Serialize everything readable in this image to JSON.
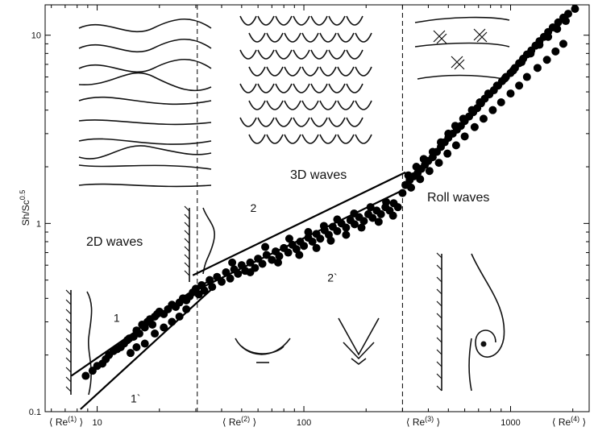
{
  "chart_data": {
    "type": "scatter",
    "x_scale": "log",
    "y_scale": "log",
    "xlim": [
      5.6,
      2400
    ],
    "ylim": [
      0.1,
      14.5
    ],
    "x_tick_labels": [
      {
        "value": 10,
        "label": "10"
      },
      {
        "value": 100,
        "label": "100"
      },
      {
        "value": 1000,
        "label": "1000"
      }
    ],
    "y_tick_labels": [
      {
        "value": 0.1,
        "label": "0.1"
      },
      {
        "value": 1,
        "label": "1"
      },
      {
        "value": 10,
        "label": "10"
      }
    ],
    "ylabel": {
      "base": "Sh/Sc",
      "exponent": "0.5"
    },
    "regime_boundaries": [
      {
        "label": "Re",
        "index": "(2)",
        "x": 30.5
      },
      {
        "label": "Re",
        "index": "(3)",
        "x": 300
      }
    ],
    "re_markers": [
      {
        "label": "Re",
        "index": "(1)"
      },
      {
        "label": "Re",
        "index": "(2)"
      },
      {
        "label": "Re",
        "index": "(3)"
      },
      {
        "label": "Re",
        "index": "(4)"
      }
    ],
    "region_labels": [
      "2D waves",
      "3D waves",
      "Roll waves"
    ],
    "fit_lines": [
      {
        "label": "1",
        "points": [
          [
            7.5,
            0.155
          ],
          [
            36,
            0.51
          ]
        ]
      },
      {
        "label": "1`",
        "points": [
          [
            8.3,
            0.103
          ],
          [
            36,
            0.45
          ]
        ]
      },
      {
        "label": "2",
        "points": [
          [
            29,
            0.53
          ],
          [
            310,
            1.87
          ]
        ]
      },
      {
        "label": "2`",
        "points": [
          [
            25,
            0.4
          ],
          [
            300,
            1.5
          ]
        ]
      }
    ],
    "series": [
      {
        "marker": "filled-circle",
        "points": [
          [
            8.8,
            0.155
          ],
          [
            9.5,
            0.165
          ],
          [
            10,
            0.175
          ],
          [
            10.6,
            0.18
          ],
          [
            11,
            0.19
          ],
          [
            11.4,
            0.2
          ],
          [
            12,
            0.21
          ],
          [
            12.5,
            0.215
          ],
          [
            13,
            0.22
          ],
          [
            13.5,
            0.23
          ],
          [
            14,
            0.24
          ],
          [
            14.3,
            0.245
          ],
          [
            15,
            0.25
          ],
          [
            15.5,
            0.27
          ],
          [
            16,
            0.26
          ],
          [
            16.5,
            0.29
          ],
          [
            17,
            0.28
          ],
          [
            17.5,
            0.3
          ],
          [
            18,
            0.31
          ],
          [
            18.5,
            0.29
          ],
          [
            19,
            0.32
          ],
          [
            19.5,
            0.33
          ],
          [
            20,
            0.34
          ],
          [
            21,
            0.33
          ],
          [
            22,
            0.35
          ],
          [
            23,
            0.37
          ],
          [
            24,
            0.36
          ],
          [
            25,
            0.38
          ],
          [
            26,
            0.4
          ],
          [
            27,
            0.39
          ],
          [
            28,
            0.41
          ],
          [
            29,
            0.43
          ],
          [
            14.5,
            0.205
          ],
          [
            15.5,
            0.22
          ],
          [
            17,
            0.23
          ],
          [
            19,
            0.26
          ],
          [
            21,
            0.28
          ],
          [
            23,
            0.3
          ],
          [
            25,
            0.32
          ],
          [
            27,
            0.35
          ],
          [
            30,
            0.45
          ],
          [
            31,
            0.42
          ],
          [
            32,
            0.47
          ],
          [
            33,
            0.44
          ],
          [
            35,
            0.5
          ],
          [
            36,
            0.46
          ],
          [
            38,
            0.52
          ],
          [
            40,
            0.49
          ],
          [
            42,
            0.55
          ],
          [
            44,
            0.51
          ],
          [
            46,
            0.57
          ],
          [
            48,
            0.54
          ],
          [
            50,
            0.6
          ],
          [
            52,
            0.56
          ],
          [
            55,
            0.62
          ],
          [
            58,
            0.58
          ],
          [
            60,
            0.65
          ],
          [
            63,
            0.61
          ],
          [
            66,
            0.68
          ],
          [
            70,
            0.64
          ],
          [
            73,
            0.71
          ],
          [
            76,
            0.67
          ],
          [
            80,
            0.74
          ],
          [
            84,
            0.7
          ],
          [
            88,
            0.77
          ],
          [
            92,
            0.73
          ],
          [
            96,
            0.8
          ],
          [
            100,
            0.76
          ],
          [
            105,
            0.84
          ],
          [
            110,
            0.8
          ],
          [
            115,
            0.88
          ],
          [
            120,
            0.83
          ],
          [
            126,
            0.92
          ],
          [
            132,
            0.87
          ],
          [
            138,
            0.96
          ],
          [
            145,
            0.91
          ],
          [
            152,
            1.0
          ],
          [
            160,
            0.95
          ],
          [
            168,
            1.04
          ],
          [
            176,
            0.99
          ],
          [
            185,
            1.08
          ],
          [
            195,
            1.03
          ],
          [
            205,
            1.12
          ],
          [
            215,
            1.07
          ],
          [
            225,
            1.17
          ],
          [
            236,
            1.12
          ],
          [
            248,
            1.22
          ],
          [
            260,
            1.17
          ],
          [
            272,
            1.28
          ],
          [
            285,
            1.22
          ],
          [
            45,
            0.62
          ],
          [
            55,
            0.55
          ],
          [
            65,
            0.75
          ],
          [
            75,
            0.62
          ],
          [
            85,
            0.83
          ],
          [
            95,
            0.68
          ],
          [
            105,
            0.9
          ],
          [
            115,
            0.74
          ],
          [
            125,
            0.97
          ],
          [
            135,
            0.81
          ],
          [
            145,
            1.05
          ],
          [
            160,
            0.87
          ],
          [
            175,
            1.13
          ],
          [
            190,
            0.95
          ],
          [
            210,
            1.22
          ],
          [
            230,
            1.02
          ],
          [
            250,
            1.3
          ],
          [
            270,
            1.1
          ],
          [
            310,
            1.6
          ],
          [
            325,
            1.7
          ],
          [
            340,
            1.78
          ],
          [
            355,
            1.85
          ],
          [
            370,
            1.95
          ],
          [
            385,
            2.05
          ],
          [
            400,
            2.15
          ],
          [
            420,
            2.25
          ],
          [
            440,
            2.4
          ],
          [
            460,
            2.55
          ],
          [
            480,
            2.7
          ],
          [
            500,
            2.85
          ],
          [
            525,
            3.0
          ],
          [
            550,
            3.15
          ],
          [
            575,
            3.3
          ],
          [
            600,
            3.5
          ],
          [
            630,
            3.7
          ],
          [
            660,
            3.9
          ],
          [
            690,
            4.1
          ],
          [
            720,
            4.35
          ],
          [
            750,
            4.6
          ],
          [
            790,
            4.85
          ],
          [
            830,
            5.1
          ],
          [
            870,
            5.4
          ],
          [
            910,
            5.7
          ],
          [
            950,
            6.0
          ],
          [
            1000,
            6.3
          ],
          [
            1050,
            6.7
          ],
          [
            1100,
            7.1
          ],
          [
            1150,
            7.5
          ],
          [
            1200,
            7.9
          ],
          [
            1260,
            8.3
          ],
          [
            1320,
            8.8
          ],
          [
            1380,
            9.3
          ],
          [
            1450,
            9.8
          ],
          [
            1520,
            10.4
          ],
          [
            1600,
            11.0
          ],
          [
            1700,
            11.7
          ],
          [
            1800,
            12.4
          ],
          [
            1900,
            13.0
          ],
          [
            2050,
            13.8
          ],
          [
            320,
            1.8
          ],
          [
            350,
            2.0
          ],
          [
            380,
            2.2
          ],
          [
            420,
            2.4
          ],
          [
            460,
            2.7
          ],
          [
            500,
            3.0
          ],
          [
            540,
            3.3
          ],
          [
            590,
            3.6
          ],
          [
            650,
            4.0
          ],
          [
            710,
            4.4
          ],
          [
            780,
            4.9
          ],
          [
            860,
            5.4
          ],
          [
            940,
            5.9
          ],
          [
            1030,
            6.5
          ],
          [
            1130,
            7.2
          ],
          [
            1250,
            8.0
          ],
          [
            1380,
            8.9
          ],
          [
            1520,
            9.8
          ],
          [
            1680,
            10.8
          ],
          [
            1850,
            11.9
          ],
          [
            300,
            1.45
          ],
          [
            330,
            1.55
          ],
          [
            365,
            1.72
          ],
          [
            405,
            1.9
          ],
          [
            450,
            2.1
          ],
          [
            495,
            2.35
          ],
          [
            545,
            2.6
          ],
          [
            600,
            2.9
          ],
          [
            670,
            3.25
          ],
          [
            740,
            3.6
          ],
          [
            820,
            4.0
          ],
          [
            900,
            4.4
          ],
          [
            1000,
            4.9
          ],
          [
            1100,
            5.4
          ],
          [
            1200,
            6.0
          ],
          [
            1350,
            6.7
          ],
          [
            1500,
            7.4
          ],
          [
            1650,
            8.2
          ],
          [
            1800,
            9.0
          ]
        ]
      }
    ]
  }
}
